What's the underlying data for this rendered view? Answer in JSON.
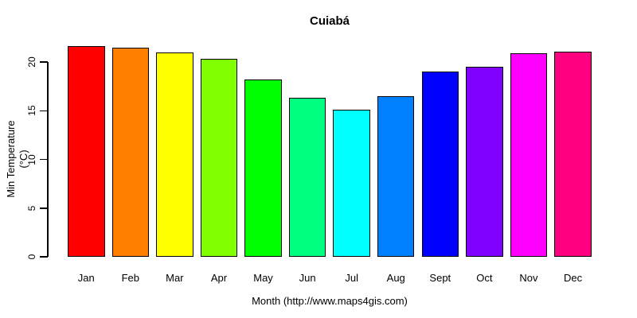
{
  "chart": {
    "title": "Cuiabá",
    "ylabel": "Min Temperature (°C)",
    "xlabel": "Month (http://www.maps4gis.com)"
  },
  "chart_data": {
    "type": "bar",
    "title": "Cuiabá",
    "xlabel": "Month (http://www.maps4gis.com)",
    "ylabel": "Min Temperature (°C)",
    "categories": [
      "Jan",
      "Feb",
      "Mar",
      "Apr",
      "May",
      "Jun",
      "Jul",
      "Aug",
      "Sept",
      "Oct",
      "Nov",
      "Dec"
    ],
    "values": [
      21.6,
      21.5,
      21.0,
      20.3,
      18.2,
      16.3,
      15.1,
      16.5,
      19.0,
      19.5,
      20.9,
      21.1
    ],
    "bar_colors": [
      "#FF0000",
      "#FF8000",
      "#FFFF00",
      "#80FF00",
      "#00FF00",
      "#00FF80",
      "#00FFFF",
      "#0080FF",
      "#0000FF",
      "#8000FF",
      "#FF00FF",
      "#FF0080"
    ],
    "bar_border_color": "#000000",
    "yticks": [
      0,
      5,
      10,
      15,
      20
    ],
    "ylim": [
      0,
      21.8
    ],
    "grid": false,
    "legend": null,
    "background": "#FFFFFF",
    "text_color": "#000000"
  }
}
